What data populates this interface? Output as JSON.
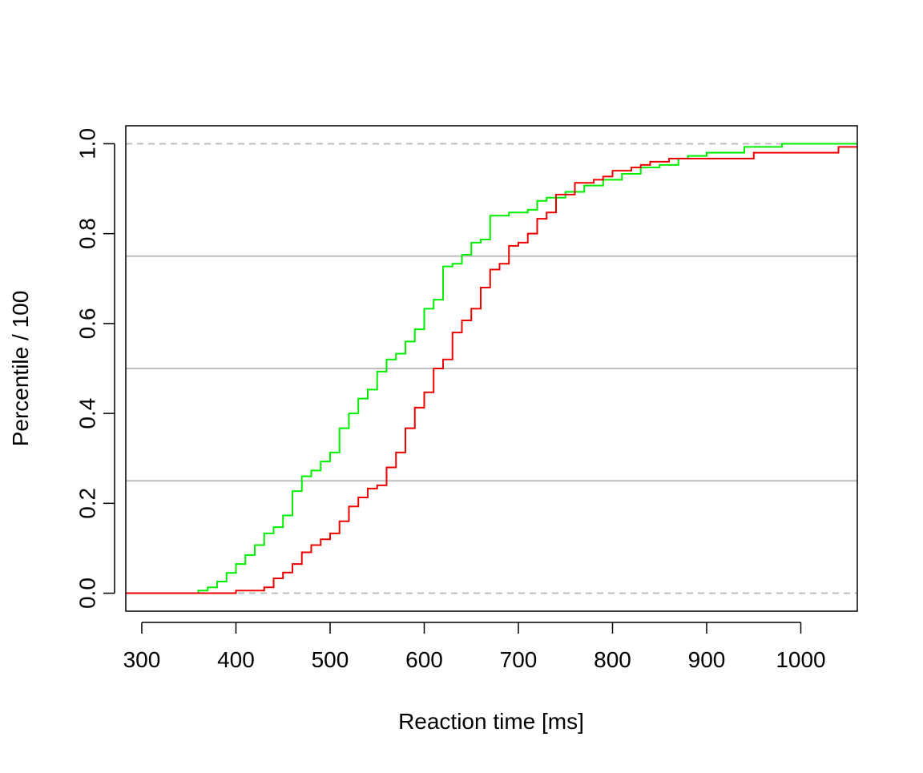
{
  "chart_data": {
    "type": "line",
    "step": true,
    "title": "",
    "xlabel": "Reaction time [ms]",
    "ylabel": "Percentile / 100",
    "xlim": [
      283,
      1060
    ],
    "ylim": [
      -0.04,
      1.04
    ],
    "x_ticks": [
      300,
      400,
      500,
      600,
      700,
      800,
      900,
      1000
    ],
    "x_tick_labels": [
      "300",
      "400",
      "500",
      "600",
      "700",
      "800",
      "900",
      "1000"
    ],
    "y_ticks": [
      0.0,
      0.2,
      0.4,
      0.6,
      0.8,
      1.0
    ],
    "y_tick_labels": [
      "0.0",
      "0.2",
      "0.4",
      "0.6",
      "0.8",
      "1.0"
    ],
    "legend": "none",
    "reference_lines": [
      {
        "y": 0.0,
        "style": "dashed",
        "color": "#bebebe"
      },
      {
        "y": 1.0,
        "style": "dashed",
        "color": "#bebebe"
      },
      {
        "y": 0.25,
        "style": "solid",
        "color": "#bebebe"
      },
      {
        "y": 0.5,
        "style": "solid",
        "color": "#bebebe"
      },
      {
        "y": 0.75,
        "style": "solid",
        "color": "#bebebe"
      }
    ],
    "series": [
      {
        "color": "#00ee00",
        "points": [
          [
            283,
            0.0
          ],
          [
            360,
            0.006
          ],
          [
            370,
            0.013
          ],
          [
            380,
            0.026
          ],
          [
            390,
            0.045
          ],
          [
            400,
            0.065
          ],
          [
            410,
            0.085
          ],
          [
            420,
            0.107
          ],
          [
            430,
            0.133
          ],
          [
            440,
            0.147
          ],
          [
            450,
            0.173
          ],
          [
            460,
            0.227
          ],
          [
            470,
            0.26
          ],
          [
            480,
            0.273
          ],
          [
            490,
            0.293
          ],
          [
            500,
            0.313
          ],
          [
            510,
            0.367
          ],
          [
            520,
            0.4
          ],
          [
            530,
            0.433
          ],
          [
            540,
            0.453
          ],
          [
            550,
            0.493
          ],
          [
            560,
            0.52
          ],
          [
            570,
            0.533
          ],
          [
            580,
            0.56
          ],
          [
            590,
            0.587
          ],
          [
            600,
            0.633
          ],
          [
            610,
            0.653
          ],
          [
            620,
            0.727
          ],
          [
            630,
            0.733
          ],
          [
            640,
            0.753
          ],
          [
            650,
            0.78
          ],
          [
            660,
            0.787
          ],
          [
            670,
            0.84
          ],
          [
            690,
            0.847
          ],
          [
            710,
            0.853
          ],
          [
            720,
            0.873
          ],
          [
            730,
            0.88
          ],
          [
            750,
            0.893
          ],
          [
            770,
            0.907
          ],
          [
            790,
            0.92
          ],
          [
            810,
            0.933
          ],
          [
            830,
            0.947
          ],
          [
            850,
            0.953
          ],
          [
            870,
            0.967
          ],
          [
            880,
            0.973
          ],
          [
            900,
            0.98
          ],
          [
            940,
            0.993
          ],
          [
            980,
            1.0
          ],
          [
            1060,
            1.0
          ]
        ]
      },
      {
        "color": "#ee0000",
        "points": [
          [
            283,
            0.0
          ],
          [
            400,
            0.006
          ],
          [
            430,
            0.013
          ],
          [
            440,
            0.033
          ],
          [
            450,
            0.046
          ],
          [
            460,
            0.065
          ],
          [
            470,
            0.091
          ],
          [
            480,
            0.107
          ],
          [
            490,
            0.12
          ],
          [
            500,
            0.133
          ],
          [
            510,
            0.16
          ],
          [
            520,
            0.193
          ],
          [
            530,
            0.213
          ],
          [
            540,
            0.233
          ],
          [
            550,
            0.24
          ],
          [
            560,
            0.28
          ],
          [
            570,
            0.313
          ],
          [
            580,
            0.367
          ],
          [
            590,
            0.413
          ],
          [
            600,
            0.447
          ],
          [
            610,
            0.5
          ],
          [
            620,
            0.52
          ],
          [
            630,
            0.58
          ],
          [
            640,
            0.607
          ],
          [
            650,
            0.633
          ],
          [
            660,
            0.68
          ],
          [
            670,
            0.72
          ],
          [
            680,
            0.733
          ],
          [
            690,
            0.773
          ],
          [
            700,
            0.78
          ],
          [
            710,
            0.8
          ],
          [
            720,
            0.833
          ],
          [
            730,
            0.847
          ],
          [
            740,
            0.887
          ],
          [
            760,
            0.913
          ],
          [
            780,
            0.92
          ],
          [
            790,
            0.927
          ],
          [
            800,
            0.94
          ],
          [
            820,
            0.947
          ],
          [
            830,
            0.953
          ],
          [
            840,
            0.96
          ],
          [
            860,
            0.967
          ],
          [
            950,
            0.98
          ],
          [
            1040,
            0.993
          ],
          [
            1060,
            0.993
          ]
        ]
      }
    ]
  }
}
